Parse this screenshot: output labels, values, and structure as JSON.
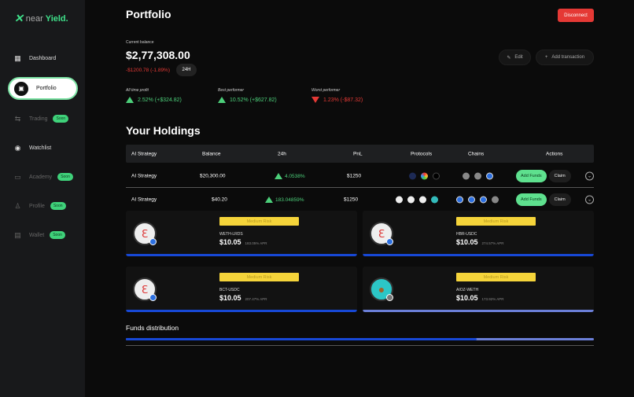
{
  "brand": {
    "near": "near",
    "yield": "Yield."
  },
  "sidebar": {
    "items": [
      {
        "label": "Dashboard",
        "icon": "grid-icon"
      },
      {
        "label": "Portfolio",
        "icon": "portfolio-icon"
      },
      {
        "label": "Trading",
        "icon": "swap-icon",
        "badge": "Soon"
      },
      {
        "label": "Watchlist",
        "icon": "eye-icon"
      },
      {
        "label": "Academy",
        "icon": "book-icon",
        "badge": "Soon"
      },
      {
        "label": "Profile",
        "icon": "user-icon",
        "badge": "Soon"
      },
      {
        "label": "Wallet",
        "icon": "wallet-icon",
        "badge": "Soon"
      }
    ]
  },
  "header": {
    "title": "Portfolio",
    "disconnect": "Disconnect",
    "edit": "Edit",
    "add_transaction": "Add transaction"
  },
  "balance": {
    "label": "Current balance",
    "value": "$2,77,308.00",
    "change": "-$1200.78 (-1.89%)",
    "period": "24H"
  },
  "stats": [
    {
      "label": "All time profit",
      "value": "2.52% (+$324.82)",
      "direction": "up"
    },
    {
      "label": "Best performer",
      "value": "10.52% (+$627.82)",
      "direction": "up"
    },
    {
      "label": "Worst performer",
      "value": "1.23% (-$87.32)",
      "direction": "down"
    }
  ],
  "holdings": {
    "title": "Your Holdings",
    "columns": [
      "AI Strategy",
      "Balance",
      "24h",
      "PnL",
      "Protocols",
      "Chains",
      "Actions"
    ],
    "rows": [
      {
        "name": "AI Strategy",
        "balance": "$20,300.00",
        "change": "4.0538%",
        "pnl": "$1250"
      },
      {
        "name": "AI Strategy",
        "balance": "$40.20",
        "change": "183.04859%",
        "pnl": "$1250"
      }
    ],
    "add_funds": "Add Funds",
    "claim": "Claim"
  },
  "pools": [
    {
      "risk": "Medium Risk",
      "pair": "WETH-LRDS",
      "price": "$10.05",
      "apr": "183.05% APR"
    },
    {
      "risk": "Medium Risk",
      "pair": "HBR-USDC",
      "price": "$10.05",
      "apr": "274.57% APR"
    },
    {
      "risk": "Medium Risk",
      "pair": "BCT-USDC",
      "price": "$10.05",
      "apr": "207.47% APR"
    },
    {
      "risk": "Medium Risk",
      "pair": "AIOZ-WETH",
      "price": "$10.05",
      "apr": "173.92% APR"
    }
  ],
  "distribution": {
    "title": "Funds distribution",
    "primary_share_percent": 75
  },
  "colors": {
    "accent": "#3fe08a",
    "negative": "#e53935",
    "risk": "#f5d43a",
    "bar": "#1748d6"
  }
}
